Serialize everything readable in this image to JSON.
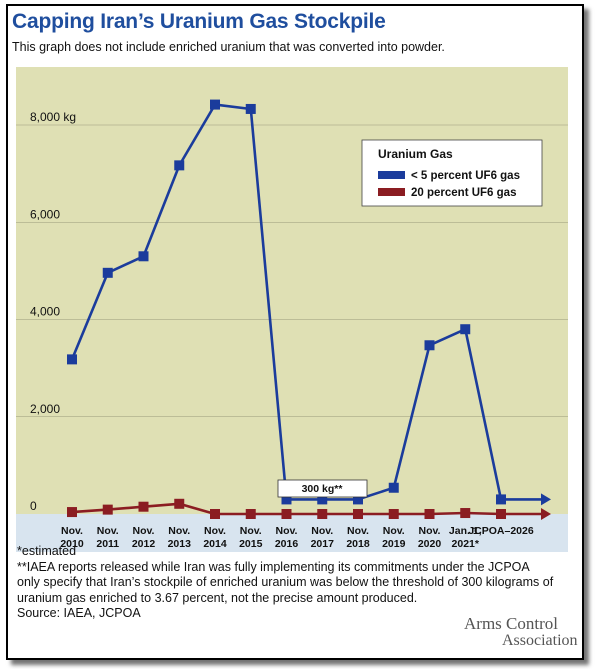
{
  "title": "Capping Iran’s Uranium Gas Stockpile",
  "subtitle": "This graph does not include enriched uranium that was converted into powder.",
  "chart_data": {
    "type": "line",
    "categories": [
      [
        "Nov.",
        "2010"
      ],
      [
        "Nov.",
        "2011"
      ],
      [
        "Nov.",
        "2012"
      ],
      [
        "Nov.",
        "2013"
      ],
      [
        "Nov.",
        "2014"
      ],
      [
        "Nov.",
        "2015"
      ],
      [
        "Nov.",
        "2016"
      ],
      [
        "Nov.",
        "2017"
      ],
      [
        "Nov.",
        "2018"
      ],
      [
        "Nov.",
        "2019"
      ],
      [
        "Nov.",
        "2020"
      ],
      [
        "Jan. 1,",
        "2021*"
      ],
      [
        "JCPOA–2026",
        ""
      ]
    ],
    "series": [
      {
        "name": "< 5 percent UF6 gas",
        "color": "#1b3c9c",
        "values": [
          3180,
          4960,
          5300,
          7170,
          8420,
          8330,
          300,
          300,
          300,
          540,
          3470,
          3800,
          300
        ]
      },
      {
        "name": "20 percent UF6 gas",
        "color": "#8b1d22",
        "values": [
          40,
          90,
          150,
          210,
          0,
          0,
          0,
          0,
          0,
          0,
          0,
          20,
          0
        ]
      }
    ],
    "ylim": [
      0,
      9000
    ],
    "yticks": [
      {
        "value": 0,
        "label": "0"
      },
      {
        "value": 2000,
        "label": "2,000"
      },
      {
        "value": 4000,
        "label": "4,000"
      },
      {
        "value": 6000,
        "label": "6,000"
      },
      {
        "value": 8000,
        "label": "8,000 kg"
      }
    ],
    "legend": {
      "title": "Uranium Gas",
      "position": "top-right"
    },
    "annotation": "300 kg**",
    "grid": true,
    "plot_bg": "#dfe0b4",
    "xaxis_bg": "#d8e4ef"
  },
  "notes": [
    "*estimated",
    "**IAEA reports released while Iran was fully implementing its commitments under the JCPOA",
    "only specify that Iran’s stockpile of enriched uranium was below the threshold of 300 kilograms of",
    "uranium gas enriched to 3.67 percent, not the precise amount produced.",
    "Source: IAEA, JCPOA"
  ],
  "logo": {
    "line1": "Arms Control",
    "line2": "Association"
  }
}
